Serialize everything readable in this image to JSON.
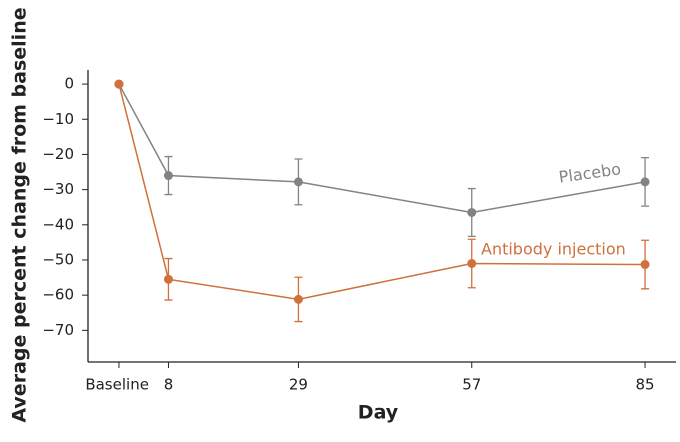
{
  "chart_data": {
    "type": "line",
    "x_label": "Day",
    "y_label": "Average percent change from baseline",
    "x": [
      0,
      8,
      29,
      57,
      85
    ],
    "xlim": [
      -5,
      90
    ],
    "xticks": [
      {
        "value": 0,
        "label": "Baseline"
      },
      8,
      29,
      57,
      85
    ],
    "ylim": [
      -79,
      4
    ],
    "yticks": [
      0,
      {
        "value": -10,
        "label": "−10"
      },
      {
        "value": -20,
        "label": "−20"
      },
      {
        "value": -30,
        "label": "−30"
      },
      {
        "value": -40,
        "label": "−40"
      },
      {
        "value": -50,
        "label": "−50"
      },
      {
        "value": -60,
        "label": "−60"
      },
      {
        "value": -70,
        "label": "−70"
      }
    ],
    "series": [
      {
        "name": "Placebo",
        "color": "#838383",
        "values": [
          0,
          -26,
          -27.8,
          -36.5,
          -27.8
        ],
        "errors": [
          null,
          5.4,
          6.5,
          6.8,
          6.9
        ]
      },
      {
        "name": "Antibody injection",
        "color": "#d0703a",
        "values": [
          0,
          -55.5,
          -61.2,
          -51,
          -51.3
        ],
        "errors": [
          null,
          5.9,
          6.3,
          6.9,
          6.9
        ]
      }
    ]
  }
}
